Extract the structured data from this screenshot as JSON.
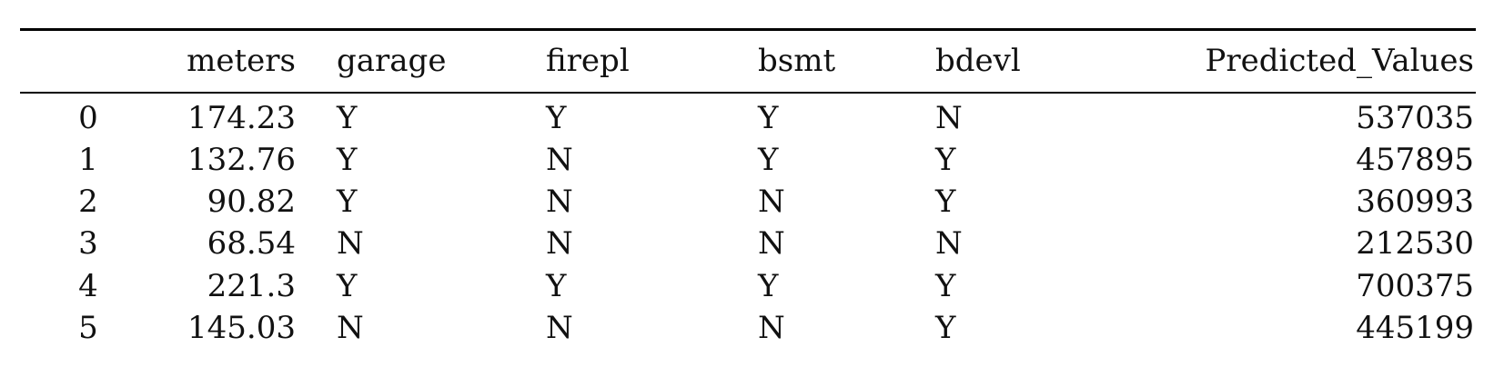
{
  "table": {
    "columns": [
      "",
      "meters",
      "garage",
      "firepl",
      "bsmt",
      "bdevl",
      "Predicted_Values"
    ],
    "rows": [
      {
        "index": "0",
        "meters": "174.23",
        "garage": "Y",
        "firepl": "Y",
        "bsmt": "Y",
        "bdevl": "N",
        "predicted": "537035"
      },
      {
        "index": "1",
        "meters": "132.76",
        "garage": "Y",
        "firepl": "N",
        "bsmt": "Y",
        "bdevl": "Y",
        "predicted": "457895"
      },
      {
        "index": "2",
        "meters": "90.82",
        "garage": "Y",
        "firepl": "N",
        "bsmt": "N",
        "bdevl": "Y",
        "predicted": "360993"
      },
      {
        "index": "3",
        "meters": "68.54",
        "garage": "N",
        "firepl": "N",
        "bsmt": "N",
        "bdevl": "N",
        "predicted": "212530"
      },
      {
        "index": "4",
        "meters": "221.3",
        "garage": "Y",
        "firepl": "Y",
        "bsmt": "Y",
        "bdevl": "Y",
        "predicted": "700375"
      },
      {
        "index": "5",
        "meters": "145.03",
        "garage": "N",
        "firepl": "N",
        "bsmt": "N",
        "bdevl": "Y",
        "predicted": "445199"
      }
    ]
  }
}
